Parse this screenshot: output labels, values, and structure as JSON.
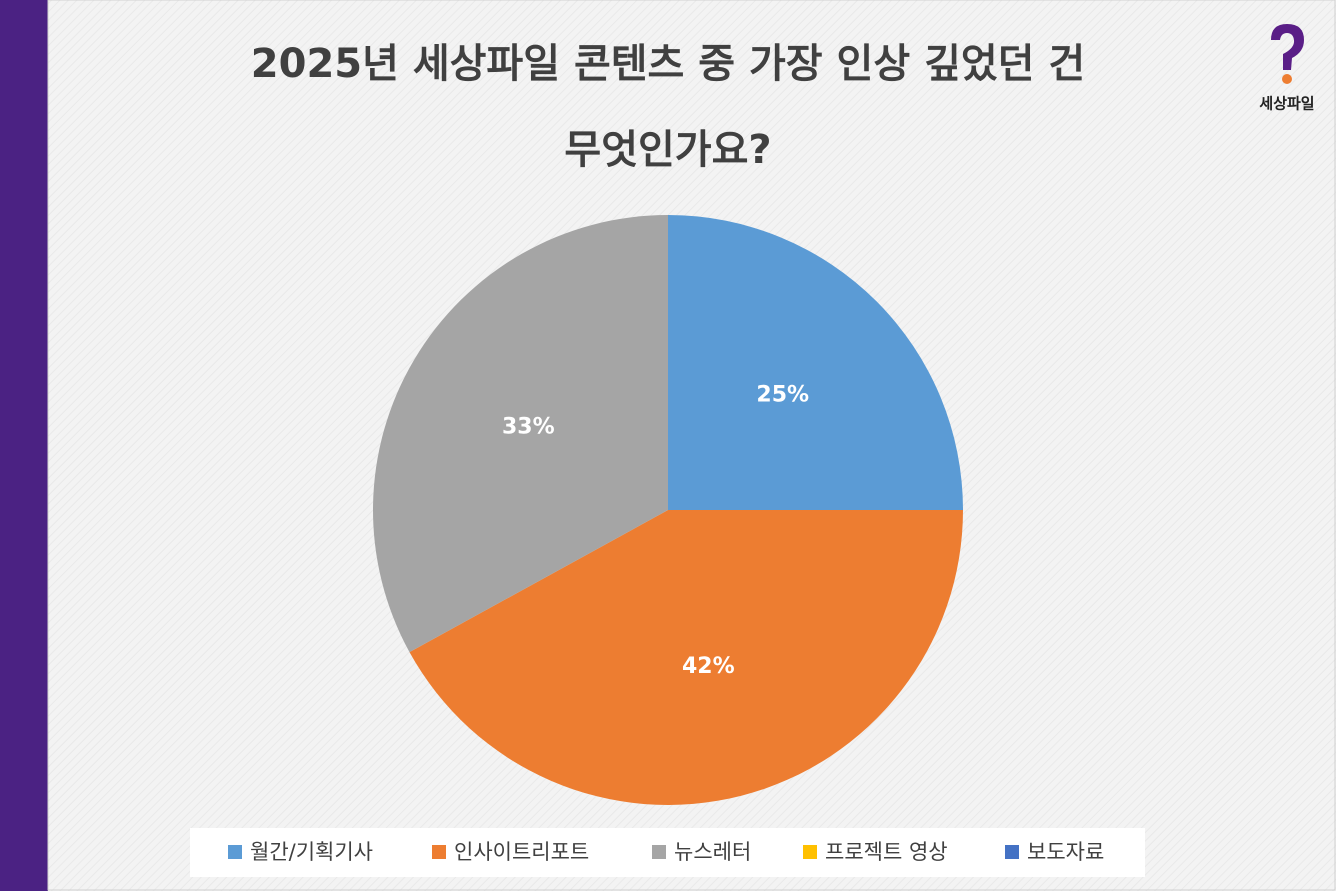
{
  "chart_data": {
    "type": "pie",
    "title": [
      "2025년 세상파일 콘텐츠 중 가장 인상 깊었던 건",
      "무엇인가요?"
    ],
    "categories": [
      "월간/기획기사",
      "인사이트리포트",
      "뉴스레터",
      "프로젝트 영상",
      "보도자료"
    ],
    "values": [
      25,
      42,
      33,
      0,
      0
    ],
    "value_labels": [
      "25%",
      "42%",
      "33%",
      null,
      null
    ],
    "colors": [
      "#5b9bd5",
      "#ed7d31",
      "#a5a5a5",
      "#ffc000",
      "#4472c4"
    ],
    "legend": "bottom"
  },
  "logo": {
    "text": "세상파일"
  }
}
